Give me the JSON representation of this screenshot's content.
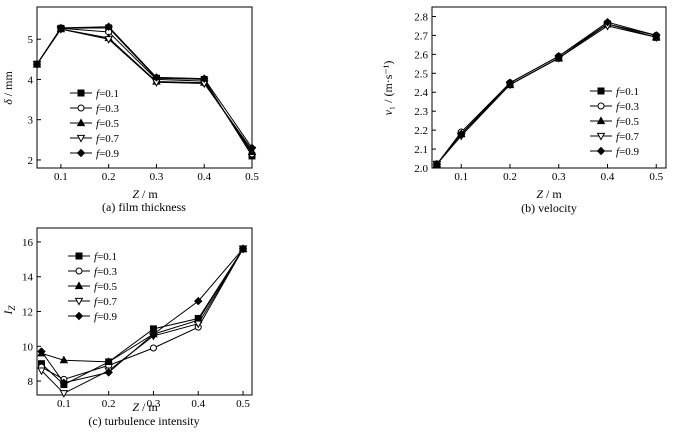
{
  "chart_data": [
    {
      "type": "line",
      "caption": "(a) film thickness",
      "ylabel": "δ / mm",
      "xlabel": "Z / m",
      "xlim": [
        0.05,
        0.5
      ],
      "ylim": [
        1.8,
        5.8
      ],
      "xticks": [
        "0.1",
        "0.2",
        "0.3",
        "0.4",
        "0.5"
      ],
      "xtick_values": [
        0.1,
        0.2,
        0.3,
        0.4,
        0.5
      ],
      "yticks": [
        "2",
        "3",
        "4",
        "5"
      ],
      "ytick_values": [
        2,
        3,
        4,
        5
      ],
      "legend_position": "bottom-left",
      "x": [
        0.05,
        0.1,
        0.2,
        0.3,
        0.4,
        0.5
      ],
      "series": [
        {
          "name": "f=0.1",
          "marker": "square-filled",
          "values": [
            4.38,
            5.27,
            5.28,
            4.03,
            4.0,
            2.1
          ]
        },
        {
          "name": "f=0.3",
          "marker": "circle-open",
          "values": [
            4.38,
            5.27,
            5.18,
            4.0,
            3.96,
            2.15
          ]
        },
        {
          "name": "f=0.5",
          "marker": "triangle-up-filled",
          "values": [
            4.38,
            5.25,
            5.03,
            3.95,
            3.92,
            2.2
          ]
        },
        {
          "name": "f=0.7",
          "marker": "triangle-down-open",
          "values": [
            4.38,
            5.25,
            5.0,
            3.93,
            3.9,
            2.25
          ]
        },
        {
          "name": "f=0.9",
          "marker": "diamond-filled",
          "values": [
            4.38,
            5.28,
            5.31,
            4.05,
            4.02,
            2.3
          ]
        }
      ]
    },
    {
      "type": "line",
      "caption": "(b) velocity",
      "ylabel": "v₁ / (m·s⁻¹)",
      "xlabel": "Z / m",
      "xlim": [
        0.04,
        0.52
      ],
      "ylim": [
        2.0,
        2.85
      ],
      "xticks": [
        "0.1",
        "0.2",
        "0.3",
        "0.4",
        "0.5"
      ],
      "xtick_values": [
        0.1,
        0.2,
        0.3,
        0.4,
        0.5
      ],
      "yticks": [
        "2.0",
        "2.1",
        "2.2",
        "2.3",
        "2.4",
        "2.5",
        "2.6",
        "2.7",
        "2.8"
      ],
      "ytick_values": [
        2.0,
        2.1,
        2.2,
        2.3,
        2.4,
        2.5,
        2.6,
        2.7,
        2.8
      ],
      "legend_position": "bottom-right",
      "x": [
        0.05,
        0.1,
        0.2,
        0.3,
        0.4,
        0.5
      ],
      "series": [
        {
          "name": "f=0.1",
          "marker": "square-filled",
          "values": [
            2.02,
            2.18,
            2.44,
            2.58,
            2.76,
            2.69
          ]
        },
        {
          "name": "f=0.3",
          "marker": "circle-open",
          "values": [
            2.02,
            2.19,
            2.45,
            2.59,
            2.76,
            2.7
          ]
        },
        {
          "name": "f=0.5",
          "marker": "triangle-up-filled",
          "values": [
            2.02,
            2.18,
            2.44,
            2.58,
            2.76,
            2.69
          ]
        },
        {
          "name": "f=0.7",
          "marker": "triangle-down-open",
          "values": [
            2.02,
            2.17,
            2.44,
            2.58,
            2.75,
            2.69
          ]
        },
        {
          "name": "f=0.9",
          "marker": "diamond-filled",
          "values": [
            2.02,
            2.18,
            2.45,
            2.59,
            2.77,
            2.7
          ]
        }
      ]
    },
    {
      "type": "line",
      "caption": "(c) turbulence intensity",
      "ylabel": "I_Z",
      "xlabel": "Z / m",
      "xlim": [
        0.04,
        0.52
      ],
      "ylim": [
        7.2,
        16.8
      ],
      "xticks": [
        "0.1",
        "0.2",
        "0.3",
        "0.4",
        "0.5"
      ],
      "xtick_values": [
        0.1,
        0.2,
        0.3,
        0.4,
        0.5
      ],
      "yticks": [
        "8",
        "10",
        "12",
        "14",
        "16"
      ],
      "ytick_values": [
        8,
        10,
        12,
        14,
        16
      ],
      "legend_position": "top-left",
      "x": [
        0.05,
        0.1,
        0.2,
        0.3,
        0.4,
        0.5
      ],
      "series": [
        {
          "name": "f=0.1",
          "marker": "square-filled",
          "values": [
            9.0,
            7.8,
            9.1,
            11.0,
            11.6,
            15.6
          ]
        },
        {
          "name": "f=0.3",
          "marker": "circle-open",
          "values": [
            8.8,
            8.1,
            8.9,
            9.9,
            11.1,
            15.6
          ]
        },
        {
          "name": "f=0.5",
          "marker": "triangle-up-filled",
          "values": [
            9.6,
            9.2,
            9.1,
            10.7,
            11.5,
            15.6
          ]
        },
        {
          "name": "f=0.7",
          "marker": "triangle-down-open",
          "values": [
            8.6,
            7.3,
            8.6,
            10.6,
            11.3,
            15.6
          ]
        },
        {
          "name": "f=0.9",
          "marker": "diamond-filled",
          "values": [
            9.7,
            7.9,
            8.5,
            10.7,
            12.6,
            15.6
          ]
        }
      ]
    }
  ]
}
